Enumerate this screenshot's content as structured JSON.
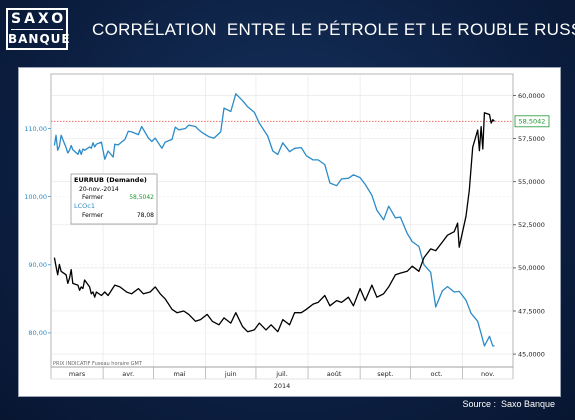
{
  "header": {
    "logo_line1": "SAXO",
    "logo_line2": "BANQUE",
    "title": "CORRÉLATION  ENTRE LE PÉTROLE ET LE ROUBLE RUSSE"
  },
  "footer": {
    "source": "Source :  Saxo Banque"
  },
  "chart_data": {
    "type": "line",
    "title": "CORRÉLATION  ENTRE LE PÉTROLE ET LE ROUBLE RUSSE",
    "x_axis": {
      "months": [
        "mars",
        "avr.",
        "mai",
        "juin",
        "juil.",
        "août",
        "sept.",
        "oct.",
        "nov."
      ],
      "year": "2014",
      "footer_text": "PRIX INDICATIF  Fuseau horaire GMT"
    },
    "y_left": {
      "series": "LCOc1",
      "ylim": [
        75,
        118
      ],
      "ticks": [
        80,
        90,
        100,
        110
      ],
      "tick_labels": [
        "80,00",
        "90,00",
        "100,00",
        "110,00"
      ],
      "color": "#2c8bc7"
    },
    "y_right": {
      "series": "EURRUB",
      "ylim": [
        44.25,
        61.25
      ],
      "ticks": [
        45,
        47.5,
        50,
        52.5,
        55,
        57.5,
        60
      ],
      "tick_labels": [
        "45,0000",
        "47,5000",
        "50,0000",
        "52,5000",
        "55,0000",
        "57,5000",
        "60,0000"
      ],
      "color": "#000000"
    },
    "reference_line": {
      "axis": "right",
      "value": 58.5042,
      "color": "#e8554e"
    },
    "last_value_label": {
      "text": "58,5042",
      "value": 58.5042
    },
    "grid": true,
    "legend": {
      "placement": "left-center",
      "title": "EURRUB (Demande)",
      "date": "20-nov.-2014",
      "rows": [
        {
          "series": "EURRUB",
          "label": "Fermer",
          "value": "58,5042",
          "color": "#1d9a2f"
        },
        {
          "series": "LCOc1",
          "label": "LCOc1",
          "value": "",
          "color": "#2c8bc7"
        },
        {
          "series": "LCOc1",
          "label": "Fermer",
          "value": "78,08",
          "color": "#000000"
        }
      ]
    },
    "x_start": "2014-03-01",
    "series": [
      {
        "name": "LCOc1",
        "axis": "left",
        "color": "#2c8bc7",
        "points": [
          [
            "2014-03-03",
            107.5
          ],
          [
            "2014-03-04",
            109.0
          ],
          [
            "2014-03-05",
            106.8
          ],
          [
            "2014-03-06",
            107.4
          ],
          [
            "2014-03-07",
            109.0
          ],
          [
            "2014-03-10",
            107.2
          ],
          [
            "2014-03-11",
            106.4
          ],
          [
            "2014-03-12",
            106.8
          ],
          [
            "2014-03-13",
            107.5
          ],
          [
            "2014-03-14",
            106.9
          ],
          [
            "2014-03-17",
            106.2
          ],
          [
            "2014-03-18",
            106.9
          ],
          [
            "2014-03-19",
            106.2
          ],
          [
            "2014-03-20",
            107.0
          ],
          [
            "2014-03-21",
            106.8
          ],
          [
            "2014-03-24",
            107.3
          ],
          [
            "2014-03-25",
            107.1
          ],
          [
            "2014-03-26",
            107.9
          ],
          [
            "2014-03-27",
            107.3
          ],
          [
            "2014-03-28",
            107.7
          ],
          [
            "2014-03-31",
            108.0
          ],
          [
            "2014-04-02",
            105.5
          ],
          [
            "2014-04-04",
            106.7
          ],
          [
            "2014-04-07",
            105.8
          ],
          [
            "2014-04-08",
            107.7
          ],
          [
            "2014-04-10",
            107.6
          ],
          [
            "2014-04-14",
            108.4
          ],
          [
            "2014-04-16",
            109.6
          ],
          [
            "2014-04-18",
            109.5
          ],
          [
            "2014-04-22",
            109.1
          ],
          [
            "2014-04-24",
            110.3
          ],
          [
            "2014-04-28",
            108.6
          ],
          [
            "2014-04-30",
            108.1
          ],
          [
            "2014-05-02",
            108.6
          ],
          [
            "2014-05-06",
            107.1
          ],
          [
            "2014-05-08",
            108.0
          ],
          [
            "2014-05-12",
            108.4
          ],
          [
            "2014-05-14",
            110.2
          ],
          [
            "2014-05-16",
            109.8
          ],
          [
            "2014-05-20",
            110.0
          ],
          [
            "2014-05-22",
            110.5
          ],
          [
            "2014-05-26",
            110.3
          ],
          [
            "2014-05-28",
            109.8
          ],
          [
            "2014-05-30",
            109.4
          ],
          [
            "2014-06-03",
            108.8
          ],
          [
            "2014-06-06",
            108.6
          ],
          [
            "2014-06-10",
            109.5
          ],
          [
            "2014-06-12",
            113.0
          ],
          [
            "2014-06-16",
            112.5
          ],
          [
            "2014-06-19",
            115.1
          ],
          [
            "2014-06-23",
            114.1
          ],
          [
            "2014-06-26",
            113.2
          ],
          [
            "2014-06-30",
            112.4
          ],
          [
            "2014-07-03",
            110.8
          ],
          [
            "2014-07-08",
            108.9
          ],
          [
            "2014-07-11",
            106.7
          ],
          [
            "2014-07-14",
            106.2
          ],
          [
            "2014-07-17",
            107.9
          ],
          [
            "2014-07-21",
            106.6
          ],
          [
            "2014-07-24",
            107.1
          ],
          [
            "2014-07-28",
            107.2
          ],
          [
            "2014-07-31",
            106.0
          ],
          [
            "2014-08-04",
            105.4
          ],
          [
            "2014-08-07",
            105.4
          ],
          [
            "2014-08-11",
            104.7
          ],
          [
            "2014-08-14",
            102.0
          ],
          [
            "2014-08-18",
            101.6
          ],
          [
            "2014-08-21",
            102.6
          ],
          [
            "2014-08-25",
            102.7
          ],
          [
            "2014-08-28",
            103.2
          ],
          [
            "2014-09-01",
            102.8
          ],
          [
            "2014-09-04",
            101.8
          ],
          [
            "2014-09-08",
            100.2
          ],
          [
            "2014-09-11",
            98.0
          ],
          [
            "2014-09-15",
            96.6
          ],
          [
            "2014-09-18",
            98.6
          ],
          [
            "2014-09-22",
            96.9
          ],
          [
            "2014-09-25",
            97.0
          ],
          [
            "2014-09-29",
            94.6
          ],
          [
            "2014-10-02",
            93.4
          ],
          [
            "2014-10-06",
            92.7
          ],
          [
            "2014-10-09",
            90.0
          ],
          [
            "2014-10-13",
            88.9
          ],
          [
            "2014-10-16",
            83.8
          ],
          [
            "2014-10-20",
            86.2
          ],
          [
            "2014-10-23",
            86.8
          ],
          [
            "2014-10-27",
            86.0
          ],
          [
            "2014-10-30",
            86.1
          ],
          [
            "2014-11-03",
            84.8
          ],
          [
            "2014-11-06",
            82.9
          ],
          [
            "2014-11-10",
            81.7
          ],
          [
            "2014-11-12",
            79.9
          ],
          [
            "2014-11-14",
            78.1
          ],
          [
            "2014-11-17",
            79.5
          ],
          [
            "2014-11-19",
            78.1
          ],
          [
            "2014-11-20",
            78.1
          ]
        ]
      },
      {
        "name": "EURRUB",
        "axis": "right",
        "color": "#000000",
        "points": [
          [
            "2014-03-03",
            50.6
          ],
          [
            "2014-03-04",
            50.1
          ],
          [
            "2014-03-05",
            49.6
          ],
          [
            "2014-03-06",
            50.2
          ],
          [
            "2014-03-07",
            49.8
          ],
          [
            "2014-03-10",
            49.6
          ],
          [
            "2014-03-11",
            49.1
          ],
          [
            "2014-03-12",
            49.4
          ],
          [
            "2014-03-13",
            49.9
          ],
          [
            "2014-03-14",
            49.1
          ],
          [
            "2014-03-17",
            49.0
          ],
          [
            "2014-03-18",
            48.7
          ],
          [
            "2014-03-19",
            48.9
          ],
          [
            "2014-03-20",
            48.8
          ],
          [
            "2014-03-21",
            49.3
          ],
          [
            "2014-03-24",
            48.9
          ],
          [
            "2014-03-25",
            48.5
          ],
          [
            "2014-03-26",
            48.6
          ],
          [
            "2014-03-27",
            48.3
          ],
          [
            "2014-03-28",
            48.6
          ],
          [
            "2014-03-31",
            48.4
          ],
          [
            "2014-04-02",
            48.6
          ],
          [
            "2014-04-04",
            48.4
          ],
          [
            "2014-04-08",
            49.0
          ],
          [
            "2014-04-11",
            48.9
          ],
          [
            "2014-04-15",
            48.6
          ],
          [
            "2014-04-18",
            48.5
          ],
          [
            "2014-04-22",
            48.8
          ],
          [
            "2014-04-25",
            48.5
          ],
          [
            "2014-04-29",
            48.6
          ],
          [
            "2014-05-02",
            48.9
          ],
          [
            "2014-05-05",
            48.5
          ],
          [
            "2014-05-08",
            48.2
          ],
          [
            "2014-05-12",
            47.6
          ],
          [
            "2014-05-15",
            47.4
          ],
          [
            "2014-05-19",
            47.5
          ],
          [
            "2014-05-22",
            47.3
          ],
          [
            "2014-05-26",
            46.9
          ],
          [
            "2014-05-29",
            47.0
          ],
          [
            "2014-06-02",
            47.3
          ],
          [
            "2014-06-05",
            46.9
          ],
          [
            "2014-06-09",
            46.7
          ],
          [
            "2014-06-12",
            47.1
          ],
          [
            "2014-06-16",
            46.8
          ],
          [
            "2014-06-19",
            47.4
          ],
          [
            "2014-06-23",
            46.6
          ],
          [
            "2014-06-26",
            46.3
          ],
          [
            "2014-06-30",
            46.4
          ],
          [
            "2014-07-03",
            46.8
          ],
          [
            "2014-07-07",
            46.4
          ],
          [
            "2014-07-10",
            46.7
          ],
          [
            "2014-07-14",
            46.3
          ],
          [
            "2014-07-17",
            47.0
          ],
          [
            "2014-07-21",
            46.7
          ],
          [
            "2014-07-24",
            47.4
          ],
          [
            "2014-07-28",
            47.4
          ],
          [
            "2014-07-31",
            47.6
          ],
          [
            "2014-08-04",
            47.9
          ],
          [
            "2014-08-07",
            48.0
          ],
          [
            "2014-08-11",
            48.4
          ],
          [
            "2014-08-14",
            47.8
          ],
          [
            "2014-08-18",
            48.1
          ],
          [
            "2014-08-21",
            48.0
          ],
          [
            "2014-08-25",
            48.3
          ],
          [
            "2014-08-28",
            47.8
          ],
          [
            "2014-09-01",
            48.8
          ],
          [
            "2014-09-04",
            48.1
          ],
          [
            "2014-09-08",
            49.0
          ],
          [
            "2014-09-11",
            48.3
          ],
          [
            "2014-09-15",
            48.5
          ],
          [
            "2014-09-18",
            48.9
          ],
          [
            "2014-09-22",
            49.6
          ],
          [
            "2014-09-25",
            49.7
          ],
          [
            "2014-09-29",
            49.8
          ],
          [
            "2014-10-02",
            50.1
          ],
          [
            "2014-10-06",
            49.8
          ],
          [
            "2014-10-09",
            50.6
          ],
          [
            "2014-10-13",
            51.1
          ],
          [
            "2014-10-16",
            51.0
          ],
          [
            "2014-10-20",
            51.5
          ],
          [
            "2014-10-23",
            51.9
          ],
          [
            "2014-10-27",
            52.1
          ],
          [
            "2014-10-29",
            52.6
          ],
          [
            "2014-10-30",
            51.2
          ],
          [
            "2014-11-03",
            53.0
          ],
          [
            "2014-11-05",
            54.5
          ],
          [
            "2014-11-07",
            57.0
          ],
          [
            "2014-11-10",
            58.0
          ],
          [
            "2014-11-11",
            56.8
          ],
          [
            "2014-11-12",
            58.2
          ],
          [
            "2014-11-13",
            56.9
          ],
          [
            "2014-11-14",
            59.0
          ],
          [
            "2014-11-17",
            58.9
          ],
          [
            "2014-11-18",
            58.4
          ],
          [
            "2014-11-19",
            58.6
          ],
          [
            "2014-11-20",
            58.5042
          ]
        ]
      }
    ]
  }
}
